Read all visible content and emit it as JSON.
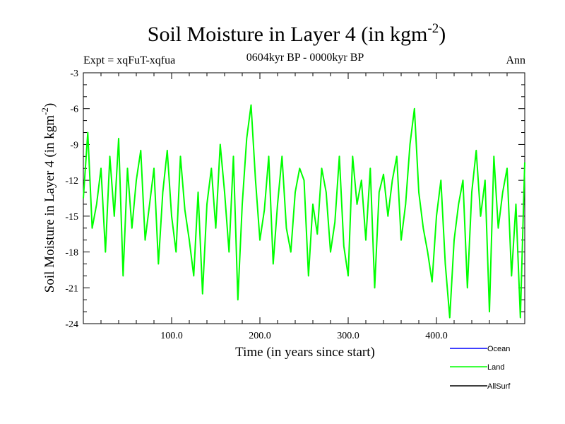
{
  "chart_data": {
    "type": "line",
    "title": "Soil Moisture in Layer 4 (in kgm",
    "title_superscript": "-2",
    "title_suffix": ")",
    "subtitle": "0604kyr BP - 0000kyr BP",
    "experiment_label": "Expt = xqFuT-xqfua",
    "season_label": "Ann",
    "xlabel": "Time (in years since start)",
    "ylabel": "Soil Moisture in Layer 4 (in kgm",
    "ylabel_superscript": "-2",
    "ylabel_suffix": ")",
    "xlim": [
      0,
      500
    ],
    "ylim": [
      -24,
      -3
    ],
    "xticks": [
      100,
      200,
      300,
      400
    ],
    "xtick_labels": [
      "100.0",
      "200.0",
      "300.0",
      "400.0"
    ],
    "yticks": [
      -3,
      -6,
      -9,
      -12,
      -15,
      -18,
      -21,
      -24
    ],
    "ytick_labels": [
      "-3",
      "-6",
      "-9",
      "-12",
      "-15",
      "-18",
      "-21",
      "-24"
    ],
    "grid": false,
    "legend_position": "bottom-right",
    "series": [
      {
        "name": "Ocean",
        "color": "#0000ff",
        "values": []
      },
      {
        "name": "Land",
        "color": "#00ff00",
        "x": [
          0,
          5,
          10,
          15,
          20,
          25,
          30,
          35,
          40,
          45,
          50,
          55,
          60,
          65,
          70,
          75,
          80,
          85,
          90,
          95,
          100,
          105,
          110,
          115,
          120,
          125,
          130,
          135,
          140,
          145,
          150,
          155,
          160,
          165,
          170,
          175,
          180,
          185,
          190,
          195,
          200,
          205,
          210,
          215,
          220,
          225,
          230,
          235,
          240,
          245,
          250,
          255,
          260,
          265,
          270,
          275,
          280,
          285,
          290,
          295,
          300,
          305,
          310,
          315,
          320,
          325,
          330,
          335,
          340,
          345,
          350,
          355,
          360,
          365,
          370,
          375,
          380,
          385,
          390,
          395,
          400,
          405,
          410,
          415,
          420,
          425,
          430,
          435,
          440,
          445,
          450,
          455,
          460,
          465,
          470,
          475,
          480,
          485,
          490,
          495,
          500
        ],
        "values": [
          -13.5,
          -8,
          -16,
          -14,
          -11,
          -18,
          -10,
          -15,
          -8.5,
          -20,
          -11,
          -16,
          -12,
          -9.5,
          -17,
          -14,
          -11,
          -19,
          -13,
          -9.5,
          -15,
          -18,
          -10,
          -14.5,
          -17,
          -20,
          -13,
          -21.5,
          -14,
          -11,
          -16,
          -9,
          -13,
          -18,
          -10,
          -22,
          -14,
          -8.5,
          -5.7,
          -12,
          -17,
          -14.5,
          -10,
          -19,
          -14,
          -10,
          -16,
          -18,
          -13,
          -11,
          -12,
          -20,
          -14,
          -16.5,
          -11,
          -13,
          -18,
          -15.5,
          -10,
          -17.5,
          -20,
          -10,
          -14,
          -12,
          -17,
          -11,
          -21,
          -13,
          -11.5,
          -15,
          -12,
          -10,
          -17,
          -14,
          -9,
          -6,
          -13,
          -16,
          -18,
          -20.5,
          -15,
          -12,
          -19,
          -23.5,
          -17,
          -14,
          -12,
          -21,
          -13,
          -9.5,
          -15,
          -12,
          -23,
          -10,
          -16,
          -13,
          -11,
          -20,
          -14,
          -23.5,
          -10.5
        ]
      },
      {
        "name": "AllSurf",
        "color": "#000000",
        "values": []
      }
    ]
  }
}
